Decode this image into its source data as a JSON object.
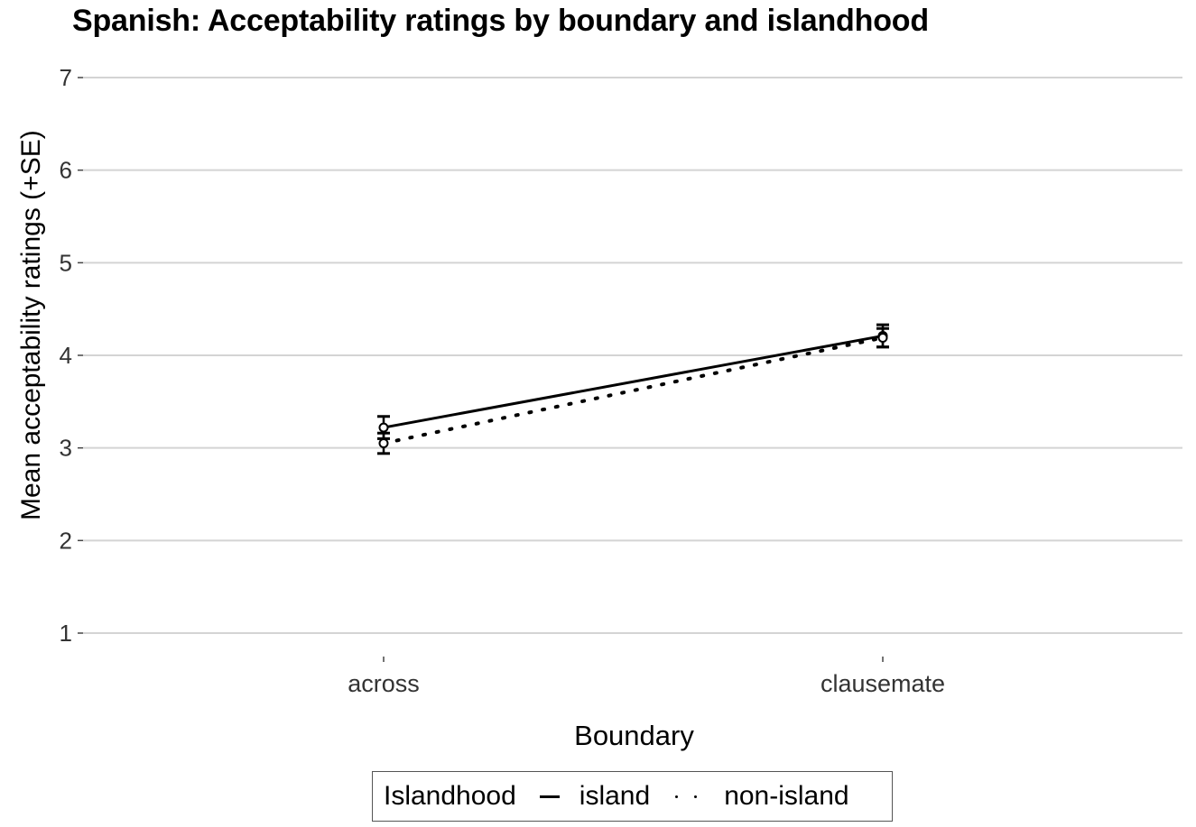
{
  "title": "Spanish: Acceptability ratings by boundary and islandhood",
  "axes": {
    "xlabel": "Boundary",
    "ylabel": "Mean acceptability ratings (+SE)",
    "yticks": [
      "1",
      "2",
      "3",
      "4",
      "5",
      "6",
      "7"
    ],
    "xticks": [
      "across",
      "clausemate"
    ]
  },
  "legend": {
    "title": "Islandhood",
    "items": [
      {
        "label": "island",
        "style": "solid"
      },
      {
        "label": "non-island",
        "style": "dotted"
      }
    ]
  },
  "chart_data": {
    "type": "line",
    "title": "Spanish: Acceptability ratings by boundary and islandhood",
    "xlabel": "Boundary",
    "ylabel": "Mean acceptability ratings (+SE)",
    "categories": [
      "across",
      "clausemate"
    ],
    "series": [
      {
        "name": "island",
        "linetype": "solid",
        "values": [
          3.22,
          4.21
        ],
        "se": [
          0.12,
          0.12
        ]
      },
      {
        "name": "non-island",
        "linetype": "dotted",
        "values": [
          3.05,
          4.19
        ],
        "se": [
          0.11,
          0.1
        ]
      }
    ],
    "ylim": [
      1,
      7
    ],
    "yticks": [
      1,
      2,
      3,
      4,
      5,
      6,
      7
    ],
    "grid": "horizontal major gridlines",
    "legend_position": "bottom",
    "legend_title": "Islandhood"
  }
}
